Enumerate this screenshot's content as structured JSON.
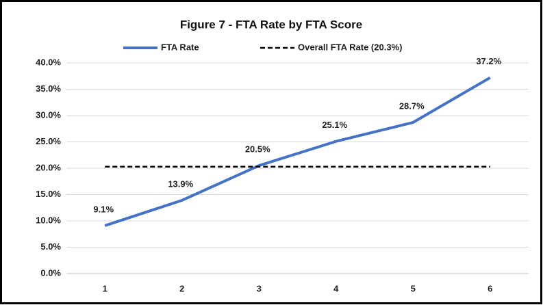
{
  "chart_data": {
    "type": "line",
    "title": "Figure 7 - FTA Rate by FTA Score",
    "categories": [
      "1",
      "2",
      "3",
      "4",
      "5",
      "6"
    ],
    "series": [
      {
        "name": "FTA Rate",
        "color": "#4472c4",
        "values": [
          9.1,
          13.9,
          20.5,
          25.1,
          28.7,
          37.2
        ],
        "value_labels": [
          "9.1%",
          "13.9%",
          "20.5%",
          "25.1%",
          "28.7%",
          "37.2%"
        ]
      },
      {
        "name": "Overall FTA Rate (20.3%)",
        "color": "#000000",
        "dashed": true,
        "values": [
          20.3,
          20.3,
          20.3,
          20.3,
          20.3,
          20.3
        ]
      }
    ],
    "ylim": [
      0,
      40
    ],
    "yticks": [
      {
        "value": 0,
        "label": "0.0%"
      },
      {
        "value": 5,
        "label": "5.0%"
      },
      {
        "value": 10,
        "label": "10.0%"
      },
      {
        "value": 15,
        "label": "15.0%"
      },
      {
        "value": 20,
        "label": "20.0%"
      },
      {
        "value": 25,
        "label": "25.0%"
      },
      {
        "value": 30,
        "label": "30.0%"
      },
      {
        "value": 35,
        "label": "35.0%"
      },
      {
        "value": 40,
        "label": "40.0%"
      }
    ],
    "grid": true,
    "legend": "top"
  }
}
